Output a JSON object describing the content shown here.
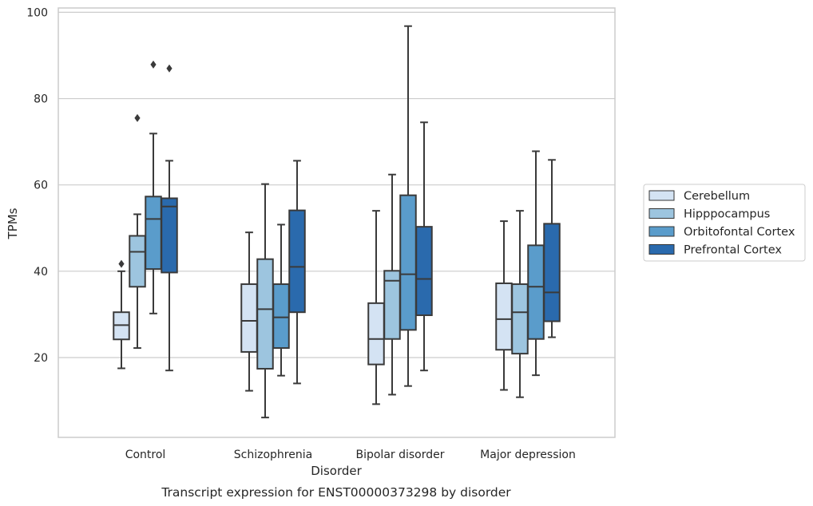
{
  "chart_data": {
    "type": "box",
    "title": "",
    "caption": "Transcript expression for ENST00000373298 by disorder",
    "xlabel": "Disorder",
    "ylabel": "TPMs",
    "ylim": [
      1.5,
      101
    ],
    "yticks": [
      20,
      40,
      60,
      80,
      100
    ],
    "grid": "horizontal",
    "legend_position": "right",
    "categories": [
      "Control",
      "Schizophrenia",
      "Bipolar disorder",
      "Major depression"
    ],
    "series": [
      {
        "name": "Cerebellum",
        "color": "#d4e3f3",
        "boxes": [
          {
            "whisker_low": 17.5,
            "q1": 24.2,
            "median": 27.5,
            "q3": 30.5,
            "whisker_high": 40.0,
            "outliers": [
              41.7
            ]
          },
          {
            "whisker_low": 12.3,
            "q1": 21.3,
            "median": 28.5,
            "q3": 37.0,
            "whisker_high": 49.0,
            "outliers": []
          },
          {
            "whisker_low": 9.2,
            "q1": 18.4,
            "median": 24.3,
            "q3": 32.6,
            "whisker_high": 54.0,
            "outliers": []
          },
          {
            "whisker_low": 12.5,
            "q1": 21.8,
            "median": 28.9,
            "q3": 37.2,
            "whisker_high": 51.6,
            "outliers": []
          }
        ]
      },
      {
        "name": "Hipppocampus",
        "color": "#9dc5df",
        "boxes": [
          {
            "whisker_low": 22.2,
            "q1": 36.4,
            "median": 44.5,
            "q3": 48.2,
            "whisker_high": 53.2,
            "outliers": [
              75.5
            ]
          },
          {
            "whisker_low": 6.1,
            "q1": 17.4,
            "median": 31.2,
            "q3": 42.8,
            "whisker_high": 60.2,
            "outliers": []
          },
          {
            "whisker_low": 11.4,
            "q1": 24.3,
            "median": 37.8,
            "q3": 40.1,
            "whisker_high": 62.4,
            "outliers": []
          },
          {
            "whisker_low": 10.8,
            "q1": 20.9,
            "median": 30.5,
            "q3": 37.0,
            "whisker_high": 54.0,
            "outliers": []
          }
        ]
      },
      {
        "name": "Orbitofontal Cortex",
        "color": "#5a9ccb",
        "boxes": [
          {
            "whisker_low": 30.2,
            "q1": 40.5,
            "median": 52.1,
            "q3": 57.3,
            "whisker_high": 71.9,
            "outliers": [
              87.9
            ]
          },
          {
            "whisker_low": 15.8,
            "q1": 22.2,
            "median": 29.3,
            "q3": 37.0,
            "whisker_high": 50.8,
            "outliers": []
          },
          {
            "whisker_low": 13.4,
            "q1": 26.4,
            "median": 39.3,
            "q3": 57.6,
            "whisker_high": 96.8,
            "outliers": []
          },
          {
            "whisker_low": 15.9,
            "q1": 24.3,
            "median": 36.4,
            "q3": 46.0,
            "whisker_high": 67.8,
            "outliers": []
          }
        ]
      },
      {
        "name": "Prefrontal Cortex",
        "color": "#2a6aad",
        "boxes": [
          {
            "whisker_low": 17.0,
            "q1": 39.7,
            "median": 55.0,
            "q3": 56.9,
            "whisker_high": 65.6,
            "outliers": [
              87.0
            ]
          },
          {
            "whisker_low": 14.0,
            "q1": 30.5,
            "median": 41.0,
            "q3": 54.1,
            "whisker_high": 65.6,
            "outliers": []
          },
          {
            "whisker_low": 17.0,
            "q1": 29.8,
            "median": 38.2,
            "q3": 50.3,
            "whisker_high": 74.5,
            "outliers": []
          },
          {
            "whisker_low": 24.7,
            "q1": 28.4,
            "median": 35.1,
            "q3": 51.0,
            "whisker_high": 65.8,
            "outliers": []
          }
        ]
      }
    ]
  }
}
